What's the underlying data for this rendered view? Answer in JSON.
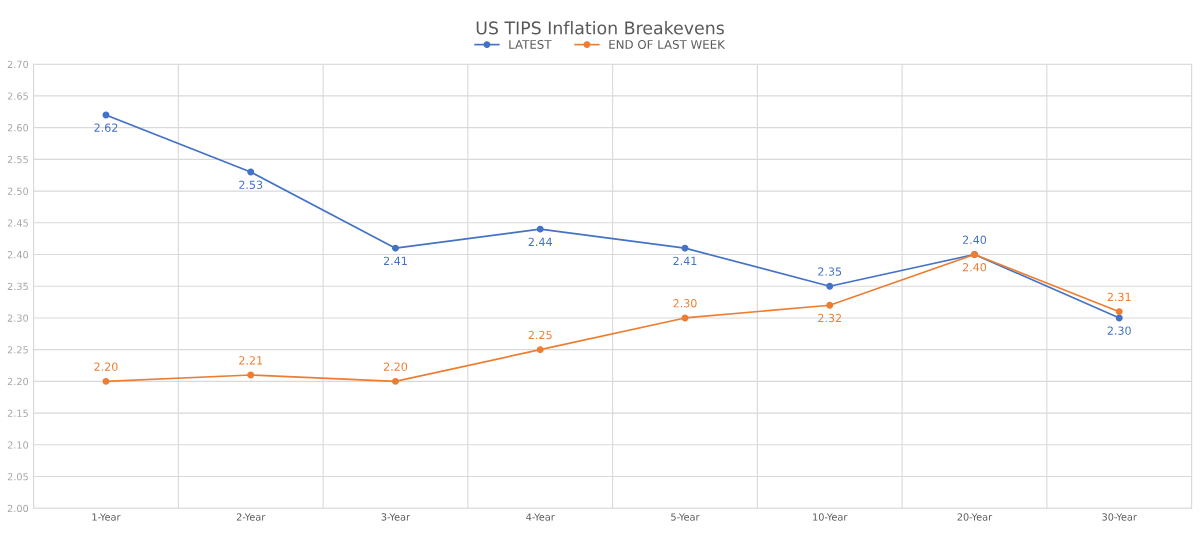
{
  "chart_data": {
    "type": "line",
    "title": "US TIPS Inflation Breakevens",
    "categories": [
      "1-Year",
      "2-Year",
      "3-Year",
      "4-Year",
      "5-Year",
      "10-Year",
      "20-Year",
      "30-Year"
    ],
    "series": [
      {
        "name": "LATEST",
        "color": "#4472c4",
        "values": [
          2.62,
          2.53,
          2.41,
          2.44,
          2.41,
          2.35,
          2.4,
          2.3
        ],
        "value_labels": [
          "2.62",
          "2.53",
          "2.41",
          "2.44",
          "2.41",
          "2.35",
          "2.40",
          "2.30"
        ]
      },
      {
        "name": "END OF LAST WEEK",
        "color": "#ed7d31",
        "values": [
          2.2,
          2.21,
          2.2,
          2.25,
          2.3,
          2.32,
          2.4,
          2.31
        ],
        "value_labels": [
          "2.20",
          "2.21",
          "2.20",
          "2.25",
          "2.30",
          "2.32",
          "2.40",
          "2.31"
        ]
      }
    ],
    "ylim": [
      2.0,
      2.7
    ],
    "yticks": [
      {
        "value": 2.0,
        "label": "2.00"
      },
      {
        "value": 2.05,
        "label": "2.05"
      },
      {
        "value": 2.1,
        "label": "2.10"
      },
      {
        "value": 2.15,
        "label": "2.15"
      },
      {
        "value": 2.2,
        "label": "2.20"
      },
      {
        "value": 2.25,
        "label": "2.25"
      },
      {
        "value": 2.3,
        "label": "2.30"
      },
      {
        "value": 2.35,
        "label": "2.35"
      },
      {
        "value": 2.4,
        "label": "2.40"
      },
      {
        "value": 2.45,
        "label": "2.45"
      },
      {
        "value": 2.5,
        "label": "2.50"
      },
      {
        "value": 2.55,
        "label": "2.55"
      },
      {
        "value": 2.6,
        "label": "2.60"
      },
      {
        "value": 2.65,
        "label": "2.65"
      },
      {
        "value": 2.7,
        "label": "2.70"
      }
    ],
    "grid": true,
    "legend": "top",
    "marker": "circle",
    "line_style": "solid"
  }
}
